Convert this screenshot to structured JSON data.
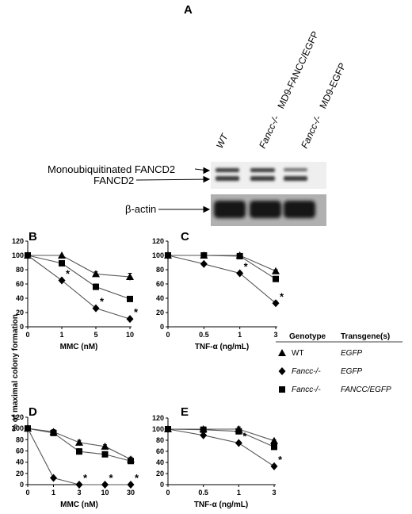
{
  "figure": {
    "panel_a": {
      "label": "A",
      "lanes": [
        {
          "genotype": "WT",
          "suffix": ""
        },
        {
          "genotype": "Fancc-/-",
          "suffix": "MD9-FANCC/EGFP"
        },
        {
          "genotype": "Fancc-/-",
          "suffix": "MD9-EGFP"
        }
      ],
      "band_labels": [
        "Monoubiquitinated FANCD2",
        "FANCD2"
      ],
      "actin_label": "β-actin"
    },
    "shared_ylabel": "% of maximal colony formation",
    "legend": {
      "genotype_header": "Genotype",
      "transgene_header": "Transgene(s)",
      "entries": [
        {
          "marker": "triangle",
          "genotype": "WT",
          "transgene": "EGFP"
        },
        {
          "marker": "diamond",
          "genotype": "Fancc-/-",
          "transgene": "EGFP"
        },
        {
          "marker": "square",
          "genotype": "Fancc-/-",
          "transgene": "FANCC/EGFP"
        }
      ]
    }
  },
  "chart_data": [
    {
      "panel": "B",
      "type": "line",
      "xlabel": "MMC (nM)",
      "categories": [
        "0",
        "1",
        "5",
        "10"
      ],
      "ylim": [
        0,
        120
      ],
      "yticks": [
        0,
        20,
        40,
        60,
        80,
        100,
        120
      ],
      "series": [
        {
          "name": "WT EGFP",
          "marker": "triangle",
          "values": [
            100,
            100,
            74,
            70
          ],
          "err": [
            0,
            0,
            3,
            5
          ]
        },
        {
          "name": "Fancc-/- FANCC/EGFP",
          "marker": "square",
          "values": [
            100,
            89,
            56,
            39
          ],
          "err": [
            0,
            2,
            4,
            2
          ]
        },
        {
          "name": "Fancc-/- EGFP",
          "marker": "diamond",
          "values": [
            100,
            65,
            26,
            11
          ],
          "err": [
            0,
            2,
            2,
            2
          ]
        }
      ],
      "significance": [
        {
          "category": "1",
          "value": 65
        },
        {
          "category": "5",
          "value": 26
        },
        {
          "category": "10",
          "value": 11
        }
      ]
    },
    {
      "panel": "C",
      "type": "line",
      "xlabel": "TNF-α (ng/mL)",
      "categories": [
        "0",
        "0.5",
        "1",
        "3"
      ],
      "ylim": [
        0,
        120
      ],
      "yticks": [
        0,
        20,
        40,
        60,
        80,
        100,
        120
      ],
      "series": [
        {
          "name": "WT EGFP",
          "marker": "triangle",
          "values": [
            100,
            100,
            100,
            78
          ],
          "err": [
            0,
            0,
            2,
            2
          ]
        },
        {
          "name": "Fancc-/- FANCC/EGFP",
          "marker": "square",
          "values": [
            100,
            100,
            99,
            67
          ],
          "err": [
            0,
            0,
            2,
            2
          ]
        },
        {
          "name": "Fancc-/- EGFP",
          "marker": "diamond",
          "values": [
            100,
            88,
            75,
            33
          ],
          "err": [
            0,
            0,
            2,
            3
          ]
        }
      ],
      "significance": [
        {
          "category": "1",
          "value": 75
        },
        {
          "category": "3",
          "value": 33
        }
      ]
    },
    {
      "panel": "D",
      "type": "line",
      "xlabel": "MMC (nM)",
      "categories": [
        "0",
        "1",
        "3",
        "10",
        "30"
      ],
      "ylim": [
        0,
        120
      ],
      "yticks": [
        0,
        20,
        40,
        60,
        80,
        100,
        120
      ],
      "series": [
        {
          "name": "WT EGFP",
          "marker": "triangle",
          "values": [
            100,
            94,
            75,
            68,
            45
          ],
          "err": [
            0,
            4,
            4,
            3,
            4
          ]
        },
        {
          "name": "Fancc-/- FANCC/EGFP",
          "marker": "square",
          "values": [
            100,
            92,
            59,
            54,
            42
          ],
          "err": [
            0,
            3,
            5,
            3,
            3
          ]
        },
        {
          "name": "Fancc-/- EGFP",
          "marker": "diamond",
          "values": [
            100,
            12,
            0,
            0,
            0
          ],
          "err": [
            0,
            2,
            0,
            0,
            0
          ]
        }
      ],
      "significance": [
        {
          "category": "3",
          "value": 0
        },
        {
          "category": "10",
          "value": 0
        },
        {
          "category": "30",
          "value": 0
        }
      ]
    },
    {
      "panel": "E",
      "type": "line",
      "xlabel": "TNF-α (ng/mL)",
      "categories": [
        "0",
        "0.5",
        "1",
        "3"
      ],
      "ylim": [
        0,
        120
      ],
      "yticks": [
        0,
        20,
        40,
        60,
        80,
        100,
        120
      ],
      "series": [
        {
          "name": "WT EGFP",
          "marker": "triangle",
          "values": [
            100,
            100,
            100,
            79
          ],
          "err": [
            0,
            3,
            4,
            2
          ]
        },
        {
          "name": "Fancc-/- FANCC/EGFP",
          "marker": "square",
          "values": [
            100,
            99,
            96,
            68
          ],
          "err": [
            0,
            3,
            4,
            3
          ]
        },
        {
          "name": "Fancc-/- EGFP",
          "marker": "diamond",
          "values": [
            100,
            89,
            75,
            33
          ],
          "err": [
            0,
            2,
            2,
            3
          ]
        }
      ],
      "significance": [
        {
          "category": "1",
          "value": 75
        },
        {
          "category": "3",
          "value": 33
        }
      ]
    }
  ]
}
